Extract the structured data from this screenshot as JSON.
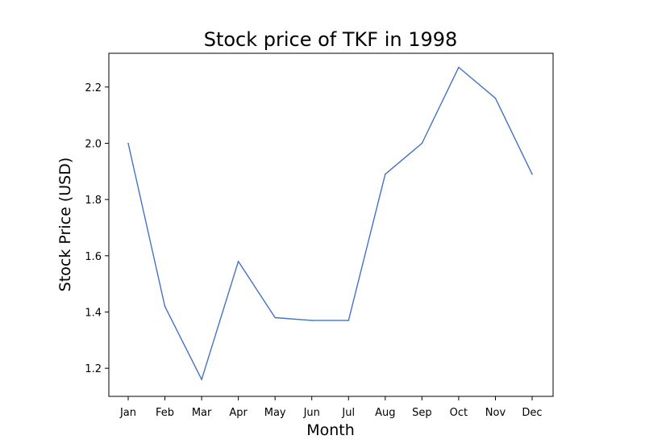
{
  "chart_data": {
    "type": "line",
    "title": "Stock price of TKF in 1998",
    "xlabel": "Month",
    "ylabel": "Stock Price (USD)",
    "categories": [
      "Jan",
      "Feb",
      "Mar",
      "Apr",
      "May",
      "Jun",
      "Jul",
      "Aug",
      "Sep",
      "Oct",
      "Nov",
      "Dec"
    ],
    "series": [
      {
        "values": [
          2.0,
          1.42,
          1.16,
          1.58,
          1.38,
          1.37,
          1.37,
          1.89,
          2.0,
          2.27,
          2.16,
          1.89
        ],
        "color": "#4472c4"
      }
    ],
    "yticks": [
      "1.2",
      "1.4",
      "1.6",
      "1.8",
      "2.0",
      "2.2"
    ],
    "ylim": [
      1.1,
      2.32
    ],
    "grid": false,
    "legend": "none"
  }
}
